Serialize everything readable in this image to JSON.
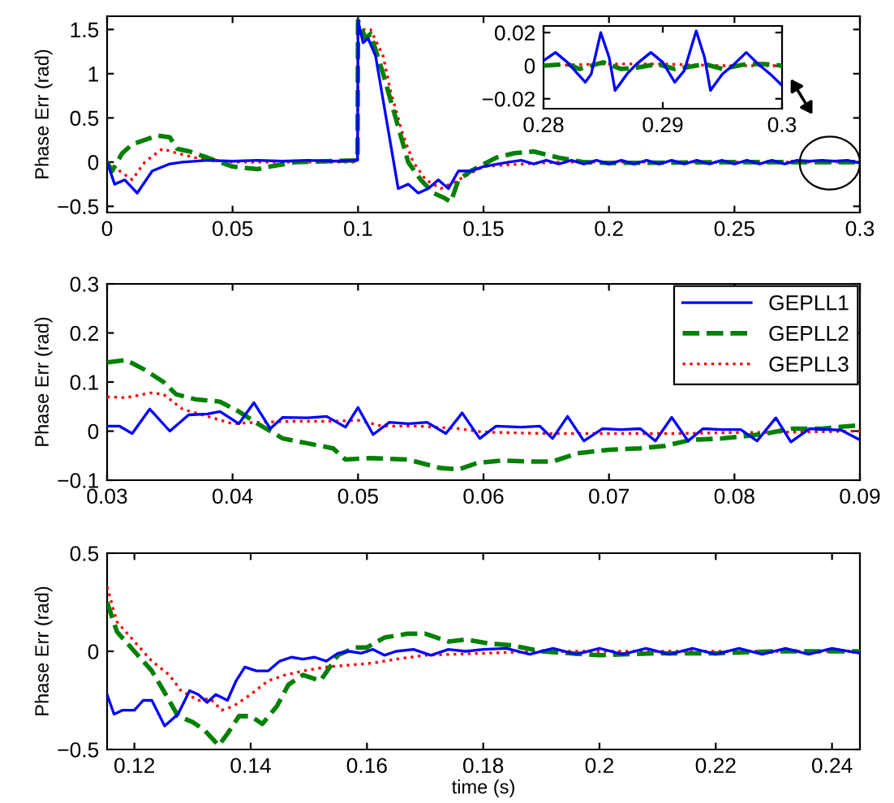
{
  "chart_data": [
    {
      "type": "line",
      "ylabel": "Phase Err (rad)",
      "xlim": [
        0,
        0.3
      ],
      "ylim": [
        -0.57,
        1.65
      ],
      "xticks": [
        0,
        0.05,
        0.1,
        0.15,
        0.2,
        0.25,
        0.3
      ],
      "yticks": [
        {
          "value": -0.5,
          "label": "−0.5"
        },
        0,
        0.5,
        1,
        1.5
      ],
      "series": [
        {
          "color": "#0000ff",
          "line_style": "solid",
          "x": [
            0,
            0.003,
            0.007,
            0.012,
            0.018,
            0.025,
            0.03,
            0.04,
            0.05,
            0.06,
            0.07,
            0.08,
            0.09,
            0.0998,
            0.1,
            0.102,
            0.104,
            0.107,
            0.11,
            0.113,
            0.116,
            0.12,
            0.124,
            0.128,
            0.132,
            0.136,
            0.14,
            0.145,
            0.15,
            0.16,
            0.165,
            0.17,
            0.175,
            0.18,
            0.185,
            0.19,
            0.195,
            0.2,
            0.205,
            0.21,
            0.215,
            0.22,
            0.225,
            0.23,
            0.235,
            0.24,
            0.245,
            0.25,
            0.255,
            0.26,
            0.265,
            0.27,
            0.275,
            0.28,
            0.285,
            0.29,
            0.295,
            0.3
          ],
          "values": [
            0,
            -0.25,
            -0.2,
            -0.35,
            -0.1,
            -0.02,
            0,
            0.02,
            0.01,
            0.02,
            0.01,
            0.02,
            0.01,
            0.02,
            1.6,
            1.35,
            1.4,
            1.2,
            0.7,
            0.2,
            -0.3,
            -0.25,
            -0.35,
            -0.3,
            -0.2,
            -0.3,
            -0.1,
            -0.1,
            -0.05,
            0,
            0.02,
            -0.02,
            0.02,
            -0.02,
            0.02,
            -0.02,
            0.02,
            -0.02,
            0.02,
            -0.02,
            0.02,
            -0.02,
            0.02,
            -0.02,
            0.02,
            -0.02,
            0.02,
            -0.02,
            0.02,
            -0.02,
            0.02,
            -0.02,
            0.02,
            0.01,
            0.02,
            0.01,
            0.02,
            -0.01
          ]
        },
        {
          "color": "#008000",
          "line_style": "dashed",
          "x": [
            0,
            0.002,
            0.006,
            0.01,
            0.02,
            0.025,
            0.028,
            0.033,
            0.04,
            0.05,
            0.06,
            0.065,
            0.075,
            0.0998,
            0.1,
            0.103,
            0.105,
            0.11,
            0.115,
            0.12,
            0.125,
            0.13,
            0.134,
            0.137,
            0.14,
            0.145,
            0.155,
            0.162,
            0.17,
            0.18,
            0.19,
            0.2,
            0.25,
            0.3
          ],
          "values": [
            0,
            -0.1,
            0.1,
            0.2,
            0.3,
            0.28,
            0.15,
            0.12,
            0.05,
            -0.05,
            -0.08,
            -0.05,
            0,
            0.02,
            1.6,
            1.4,
            1.45,
            1.0,
            0.5,
            0,
            -0.2,
            -0.35,
            -0.4,
            -0.45,
            -0.2,
            -0.1,
            0.05,
            0.1,
            0.12,
            0.05,
            0,
            -0.01,
            0,
            0
          ]
        },
        {
          "color": "#ff0000",
          "line_style": "dotted",
          "x": [
            0,
            0.01,
            0.015,
            0.022,
            0.028,
            0.035,
            0.05,
            0.0998,
            0.1,
            0.105,
            0.11,
            0.113,
            0.118,
            0.122,
            0.127,
            0.133,
            0.14,
            0.15,
            0.16,
            0.18,
            0.3
          ],
          "values": [
            0,
            -0.2,
            0,
            0.15,
            0.1,
            0.05,
            0,
            0,
            1.5,
            1.5,
            1.2,
            0.8,
            0.3,
            0,
            -0.2,
            -0.3,
            -0.2,
            -0.05,
            -0.03,
            0,
            0
          ]
        }
      ]
    },
    {
      "type": "line",
      "xlim": [
        0.28,
        0.3
      ],
      "ylim": [
        -0.026,
        0.024
      ],
      "xticks": [
        0.28,
        0.29,
        0.3
      ],
      "yticks": [
        {
          "value": -0.02,
          "label": "−0.02"
        },
        0,
        0.02
      ],
      "series": [
        {
          "color": "#0000ff",
          "line_style": "solid",
          "x": [
            0.28,
            0.281,
            0.282,
            0.2835,
            0.284,
            0.2848,
            0.2855,
            0.286,
            0.287,
            0.2878,
            0.289,
            0.29,
            0.291,
            0.2918,
            0.2928,
            0.2935,
            0.294,
            0.295,
            0.296,
            0.297,
            0.298,
            0.299,
            0.3
          ],
          "values": [
            0.003,
            0.008,
            0.002,
            -0.01,
            -0.005,
            0.02,
            0.005,
            -0.015,
            -0.005,
            0.001,
            0.008,
            0.002,
            -0.01,
            -0.003,
            0.021,
            0.005,
            -0.015,
            -0.005,
            0.001,
            0.008,
            0.001,
            -0.005,
            -0.012
          ]
        },
        {
          "color": "#008000",
          "line_style": "dashed",
          "x": [
            0.28,
            0.282,
            0.283,
            0.285,
            0.2865,
            0.288,
            0.2895,
            0.291,
            0.292,
            0.2935,
            0.295,
            0.297,
            0.2985,
            0.3
          ],
          "values": [
            0,
            0.001,
            -0.002,
            0.002,
            -0.002,
            -0.001,
            0.001,
            -0.002,
            -0.001,
            0.001,
            -0.002,
            0.001,
            0.001,
            0
          ]
        },
        {
          "color": "#ff0000",
          "line_style": "dotted",
          "x": [
            0.28,
            0.285,
            0.29,
            0.295,
            0.3
          ],
          "values": [
            0,
            0.001,
            0.001,
            0,
            0
          ]
        }
      ]
    },
    {
      "type": "line",
      "ylabel": "Phase Err (rad)",
      "legend": "top right",
      "xlim": [
        0.03,
        0.09
      ],
      "ylim": [
        -0.1,
        0.3
      ],
      "xticks": [
        0.03,
        0.04,
        0.05,
        0.06,
        0.07,
        0.08,
        0.09
      ],
      "yticks": [
        {
          "value": -0.1,
          "label": "−0.1"
        },
        0,
        0.1,
        0.2,
        0.3
      ],
      "series": [
        {
          "name": "GEPLL1",
          "color": "#0000ff",
          "line_style": "solid",
          "x": [
            0.03,
            0.031,
            0.032,
            0.0334,
            0.035,
            0.0365,
            0.038,
            0.039,
            0.0405,
            0.0417,
            0.043,
            0.044,
            0.046,
            0.0475,
            0.049,
            0.05,
            0.0512,
            0.0525,
            0.054,
            0.0555,
            0.057,
            0.0583,
            0.0597,
            0.061,
            0.063,
            0.0645,
            0.0655,
            0.0667,
            0.068,
            0.0695,
            0.071,
            0.0725,
            0.0737,
            0.075,
            0.0763,
            0.0775,
            0.079,
            0.0805,
            0.0818,
            0.0833,
            0.0845,
            0.086,
            0.0875,
            0.0885,
            0.09
          ],
          "values": [
            0.01,
            0.01,
            -0.005,
            0.045,
            0,
            0.033,
            0.035,
            0.04,
            0.015,
            0.058,
            0.005,
            0.028,
            0.027,
            0.03,
            0.008,
            0.048,
            -0.007,
            0.018,
            0.015,
            0.018,
            -0.005,
            0.037,
            -0.015,
            0.01,
            0.008,
            0.01,
            -0.015,
            0.03,
            -0.02,
            0.005,
            0.003,
            0.005,
            -0.02,
            0.028,
            -0.02,
            0.005,
            0.003,
            0.003,
            -0.02,
            0.027,
            -0.022,
            0.005,
            0.003,
            0.002,
            -0.018
          ]
        },
        {
          "name": "GEPLL2",
          "color": "#008000",
          "line_style": "dashed",
          "x": [
            0.03,
            0.0315,
            0.033,
            0.0345,
            0.0355,
            0.037,
            0.039,
            0.0405,
            0.042,
            0.044,
            0.046,
            0.048,
            0.049,
            0.051,
            0.054,
            0.0565,
            0.058,
            0.0595,
            0.0615,
            0.0635,
            0.0655,
            0.0675,
            0.07,
            0.0725,
            0.0745,
            0.0765,
            0.079,
            0.081,
            0.0825,
            0.0845,
            0.087,
            0.089,
            0.09
          ],
          "values": [
            0.14,
            0.145,
            0.125,
            0.1,
            0.075,
            0.065,
            0.06,
            0.04,
            0.015,
            -0.015,
            -0.025,
            -0.035,
            -0.058,
            -0.055,
            -0.058,
            -0.075,
            -0.078,
            -0.065,
            -0.06,
            -0.062,
            -0.062,
            -0.045,
            -0.038,
            -0.035,
            -0.03,
            -0.018,
            -0.015,
            -0.01,
            -0.005,
            0.005,
            0.005,
            0.01,
            0.012
          ]
        },
        {
          "name": "GEPLL3",
          "color": "#ff0000",
          "line_style": "dotted",
          "x": [
            0.03,
            0.0315,
            0.0335,
            0.0345,
            0.036,
            0.038,
            0.04,
            0.042,
            0.045,
            0.048,
            0.05,
            0.052,
            0.055,
            0.058,
            0.06,
            0.065,
            0.07,
            0.075,
            0.08,
            0.085,
            0.09
          ],
          "values": [
            0.07,
            0.068,
            0.078,
            0.075,
            0.045,
            0.03,
            0.015,
            0.018,
            0.02,
            0.02,
            0.022,
            0.01,
            0.01,
            0.005,
            -0.002,
            -0.005,
            -0.005,
            -0.005,
            -0.003,
            -0.002,
            0
          ]
        }
      ]
    },
    {
      "type": "line",
      "ylabel": "Phase Err (rad)",
      "xlabel": "time (s)",
      "xlim": [
        0.1153,
        0.2448
      ],
      "ylim": [
        -0.5,
        0.5
      ],
      "xticks": [
        0.12,
        0.14,
        0.16,
        0.18,
        0.2,
        0.22,
        0.24
      ],
      "yticks": [
        {
          "value": -0.5,
          "label": "−0.5"
        },
        0,
        0.5
      ],
      "series": [
        {
          "color": "#0000ff",
          "line_style": "solid",
          "x": [
            0.1153,
            0.1165,
            0.118,
            0.12,
            0.1215,
            0.123,
            0.1252,
            0.1275,
            0.1295,
            0.131,
            0.1325,
            0.134,
            0.136,
            0.1375,
            0.139,
            0.141,
            0.143,
            0.145,
            0.147,
            0.149,
            0.151,
            0.153,
            0.155,
            0.157,
            0.159,
            0.161,
            0.163,
            0.165,
            0.168,
            0.171,
            0.174,
            0.177,
            0.18,
            0.184,
            0.188,
            0.192,
            0.196,
            0.2,
            0.204,
            0.208,
            0.212,
            0.216,
            0.22,
            0.224,
            0.228,
            0.232,
            0.236,
            0.24,
            0.2448
          ],
          "values": [
            -0.22,
            -0.32,
            -0.3,
            -0.3,
            -0.25,
            -0.25,
            -0.38,
            -0.32,
            -0.2,
            -0.22,
            -0.26,
            -0.22,
            -0.25,
            -0.15,
            -0.08,
            -0.1,
            -0.1,
            -0.05,
            -0.03,
            -0.04,
            -0.03,
            -0.05,
            -0.01,
            0,
            -0.01,
            0.01,
            -0.02,
            0,
            0.01,
            -0.02,
            0.01,
            0,
            0.01,
            0.015,
            -0.015,
            0.015,
            -0.015,
            0.015,
            -0.015,
            0.015,
            -0.015,
            0.015,
            -0.015,
            0.015,
            -0.015,
            0.015,
            -0.015,
            0.015,
            -0.01
          ]
        },
        {
          "color": "#008000",
          "line_style": "dashed",
          "x": [
            0.1153,
            0.117,
            0.12,
            0.123,
            0.125,
            0.1275,
            0.13,
            0.132,
            0.1345,
            0.136,
            0.138,
            0.14,
            0.142,
            0.1445,
            0.1465,
            0.149,
            0.152,
            0.155,
            0.158,
            0.16,
            0.163,
            0.167,
            0.17,
            0.174,
            0.177,
            0.181,
            0.185,
            0.19,
            0.2,
            0.21,
            0.22,
            0.23,
            0.2448
          ],
          "values": [
            0.25,
            0.1,
            0,
            -0.1,
            -0.2,
            -0.33,
            -0.36,
            -0.4,
            -0.48,
            -0.42,
            -0.33,
            -0.33,
            -0.37,
            -0.28,
            -0.17,
            -0.12,
            -0.15,
            -0.02,
            0.02,
            0.02,
            0.07,
            0.09,
            0.09,
            0.05,
            0.06,
            0.04,
            0.03,
            0,
            -0.02,
            -0.01,
            -0.01,
            0,
            0
          ]
        },
        {
          "color": "#ff0000",
          "line_style": "dotted",
          "x": [
            0.1153,
            0.117,
            0.12,
            0.123,
            0.126,
            0.128,
            0.131,
            0.133,
            0.135,
            0.137,
            0.14,
            0.143,
            0.146,
            0.149,
            0.153,
            0.157,
            0.161,
            0.165,
            0.17,
            0.18,
            0.19,
            0.2448
          ],
          "values": [
            0.33,
            0.15,
            0.05,
            -0.05,
            -0.12,
            -0.2,
            -0.25,
            -0.24,
            -0.3,
            -0.28,
            -0.22,
            -0.15,
            -0.12,
            -0.1,
            -0.08,
            -0.07,
            -0.06,
            -0.04,
            -0.02,
            -0.01,
            0,
            0
          ]
        }
      ]
    }
  ]
}
